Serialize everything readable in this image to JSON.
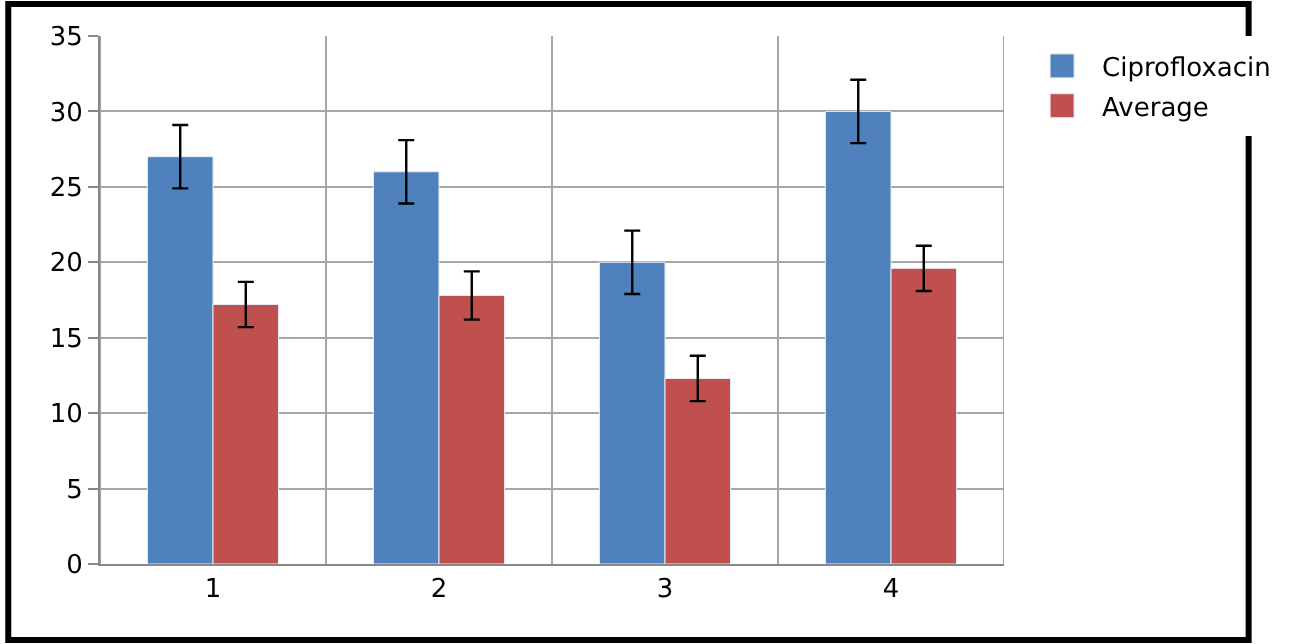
{
  "chart_data": {
    "type": "bar",
    "categories": [
      "1",
      "2",
      "3",
      "4"
    ],
    "series": [
      {
        "name": "Ciprofloxacin",
        "color": "#4f81bd",
        "values": [
          27.0,
          26.0,
          20.0,
          30.0
        ],
        "errors": [
          2.1,
          2.1,
          2.1,
          2.1
        ]
      },
      {
        "name": "Average",
        "color": "#c0504d",
        "values": [
          17.2,
          17.8,
          12.3,
          19.6
        ],
        "errors": [
          1.5,
          1.6,
          1.5,
          1.5
        ]
      }
    ],
    "ylim": [
      0,
      35
    ],
    "yticks": [
      0,
      5,
      10,
      15,
      20,
      25,
      30,
      35
    ],
    "grid": true,
    "legend": "top right"
  }
}
